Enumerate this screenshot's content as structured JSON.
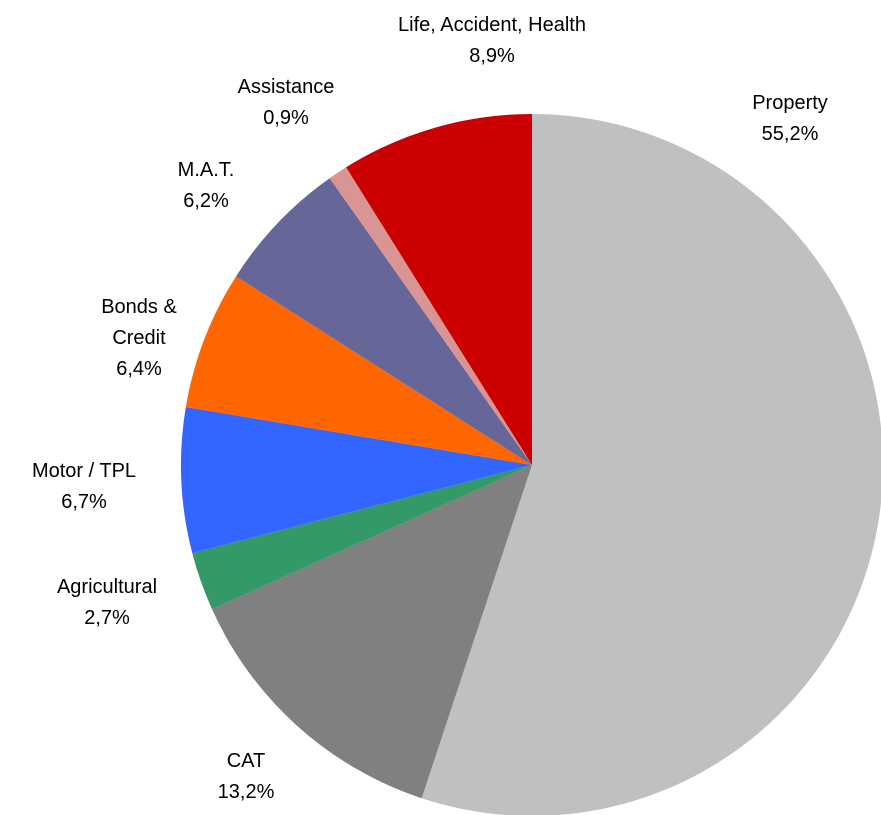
{
  "chart_data": {
    "type": "pie",
    "categories": [
      "Property",
      "CAT",
      "Agricultural",
      "Motor / TPL",
      "Bonds & Credit",
      "M.A.T.",
      "Assistance",
      "Life, Accident, Health"
    ],
    "values": [
      55.2,
      13.2,
      2.7,
      6.7,
      6.4,
      6.2,
      0.9,
      8.9
    ],
    "value_labels": [
      "55,2%",
      "13,2%",
      "2,7%",
      "6,7%",
      "6,4%",
      "6,2%",
      "0,9%",
      "8,9%"
    ],
    "colors": [
      "#c0c0c0",
      "#808080",
      "#339966",
      "#3366ff",
      "#ff6600",
      "#666699",
      "#d99594",
      "#cc0000"
    ]
  }
}
